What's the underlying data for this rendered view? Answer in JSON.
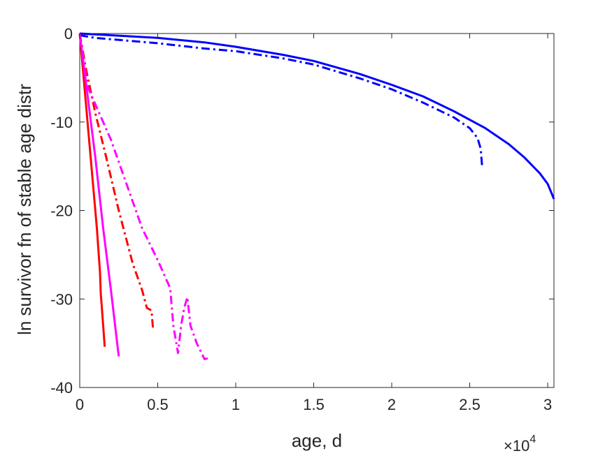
{
  "chart_data": {
    "type": "line",
    "xlabel": "age, d",
    "ylabel": "ln survivor fn of stable age distr",
    "xlim": [
      0,
      30400
    ],
    "ylim": [
      -40,
      0
    ],
    "x_ticks": [
      0,
      5000,
      10000,
      15000,
      20000,
      25000,
      30000
    ],
    "x_tick_labels": [
      "0",
      "0.5",
      "1",
      "1.5",
      "2",
      "2.5",
      "3"
    ],
    "y_ticks": [
      0,
      -10,
      -20,
      -30,
      -40
    ],
    "y_tick_labels": [
      "0",
      "-10",
      "-20",
      "-30",
      "-40"
    ],
    "x_exponent_label": {
      "base": "×10",
      "power": "4"
    },
    "grid": false,
    "legend": "none",
    "series": [
      {
        "color": "#0000ff",
        "style": "solid",
        "points": [
          [
            0,
            0
          ],
          [
            2000,
            -0.2
          ],
          [
            5000,
            -0.5
          ],
          [
            8000,
            -1.0
          ],
          [
            10000,
            -1.5
          ],
          [
            13000,
            -2.4
          ],
          [
            15000,
            -3.1
          ],
          [
            18000,
            -4.6
          ],
          [
            20000,
            -5.8
          ],
          [
            22000,
            -7.1
          ],
          [
            24000,
            -8.8
          ],
          [
            26000,
            -10.7
          ],
          [
            27500,
            -12.5
          ],
          [
            28500,
            -14.0
          ],
          [
            29500,
            -15.8
          ],
          [
            30000,
            -17.0
          ],
          [
            30400,
            -18.7
          ]
        ]
      },
      {
        "color": "#0000ff",
        "style": "dashdot",
        "points": [
          [
            0,
            -0.2
          ],
          [
            1000,
            -0.5
          ],
          [
            3000,
            -0.8
          ],
          [
            5000,
            -1.1
          ],
          [
            8000,
            -1.7
          ],
          [
            10000,
            -2.0
          ],
          [
            13000,
            -2.8
          ],
          [
            15000,
            -3.5
          ],
          [
            18000,
            -5.1
          ],
          [
            20000,
            -6.3
          ],
          [
            22000,
            -7.8
          ],
          [
            24000,
            -9.5
          ],
          [
            25000,
            -10.7
          ],
          [
            25500,
            -11.8
          ],
          [
            25700,
            -13.0
          ],
          [
            25800,
            -15.1
          ]
        ]
      },
      {
        "color": "#ff0000",
        "style": "solid",
        "points": [
          [
            0,
            0
          ],
          [
            300,
            -6
          ],
          [
            700,
            -14
          ],
          [
            1100,
            -22
          ],
          [
            1300,
            -27
          ],
          [
            1350,
            -29.5
          ],
          [
            1400,
            -30.5
          ],
          [
            1600,
            -35.4
          ]
        ]
      },
      {
        "color": "#ff0000",
        "style": "dashdot",
        "points": [
          [
            0,
            0
          ],
          [
            400,
            -4
          ],
          [
            1000,
            -9
          ],
          [
            1700,
            -14
          ],
          [
            2500,
            -20
          ],
          [
            3400,
            -26
          ],
          [
            4000,
            -29
          ],
          [
            4300,
            -31
          ],
          [
            4600,
            -31.3
          ],
          [
            4700,
            -33.4
          ]
        ]
      },
      {
        "color": "#ff00ff",
        "style": "solid",
        "points": [
          [
            0,
            0
          ],
          [
            500,
            -7
          ],
          [
            1000,
            -14
          ],
          [
            1500,
            -22
          ],
          [
            2000,
            -29
          ],
          [
            2500,
            -36.5
          ]
        ]
      },
      {
        "color": "#ff00ff",
        "style": "dashdot",
        "points": [
          [
            0,
            0
          ],
          [
            500,
            -6
          ],
          [
            1000,
            -8
          ],
          [
            2000,
            -12
          ],
          [
            3000,
            -17
          ],
          [
            4000,
            -22
          ],
          [
            5000,
            -25.6
          ],
          [
            5800,
            -28.8
          ],
          [
            6000,
            -33.0
          ],
          [
            6300,
            -36.1
          ],
          [
            6500,
            -33.0
          ],
          [
            6700,
            -31.0
          ],
          [
            6900,
            -29.8
          ],
          [
            7100,
            -33.0
          ],
          [
            7500,
            -35.0
          ],
          [
            8000,
            -36.8
          ],
          [
            8200,
            -36.7
          ]
        ]
      }
    ]
  }
}
